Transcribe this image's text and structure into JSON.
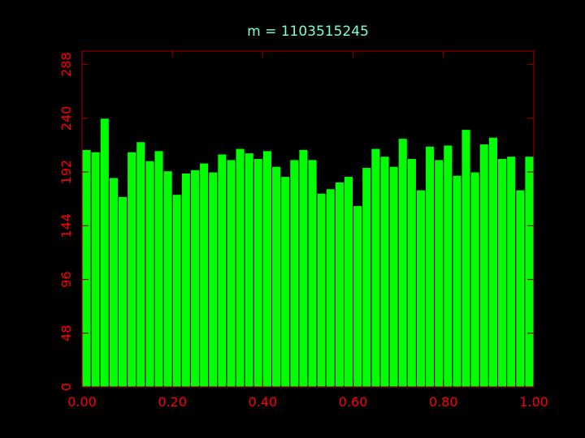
{
  "colors": {
    "background": "#000000",
    "axes": "#8b0000",
    "tick_labels": "#ff0000",
    "title": "#7fffd4",
    "bar_fill": "#00ff00",
    "bar_edge": "#000000"
  },
  "chart_data": {
    "type": "bar",
    "title": "m = 1103515245",
    "xlabel": "",
    "ylabel": "",
    "xlim": [
      0,
      1
    ],
    "ylim": [
      0,
      300
    ],
    "grid": false,
    "legend": "none",
    "bin_width": 0.02,
    "x_ticks": [
      0,
      0.2,
      0.4,
      0.6,
      0.8,
      1.0
    ],
    "x_tick_labels": [
      "0.00",
      "0.20",
      "0.40",
      "0.60",
      "0.80",
      "1.00"
    ],
    "y_ticks": [
      0,
      48,
      96,
      144,
      192,
      240,
      288
    ],
    "y_tick_labels": [
      "0",
      "48",
      "96",
      "144",
      "192",
      "240",
      "288"
    ],
    "bin_starts": [
      0.0,
      0.02,
      0.04,
      0.06,
      0.08,
      0.1,
      0.12,
      0.14,
      0.16,
      0.18,
      0.2,
      0.22,
      0.24,
      0.26,
      0.28,
      0.3,
      0.32,
      0.34,
      0.36,
      0.38,
      0.4,
      0.42,
      0.44,
      0.46,
      0.48,
      0.5,
      0.52,
      0.54,
      0.56,
      0.58,
      0.6,
      0.62,
      0.64,
      0.66,
      0.68,
      0.7,
      0.72,
      0.74,
      0.76,
      0.78,
      0.8,
      0.82,
      0.84,
      0.86,
      0.88,
      0.9,
      0.92,
      0.94,
      0.96,
      0.98
    ],
    "values": [
      212,
      210,
      240,
      187,
      170,
      210,
      219,
      202,
      211,
      193,
      172,
      191,
      194,
      200,
      192,
      208,
      203,
      213,
      209,
      204,
      211,
      197,
      188,
      203,
      212,
      203,
      173,
      177,
      183,
      188,
      162,
      196,
      213,
      206,
      197,
      222,
      204,
      176,
      215,
      203,
      216,
      189,
      230,
      192,
      217,
      223,
      204,
      206,
      176,
      206
    ]
  }
}
